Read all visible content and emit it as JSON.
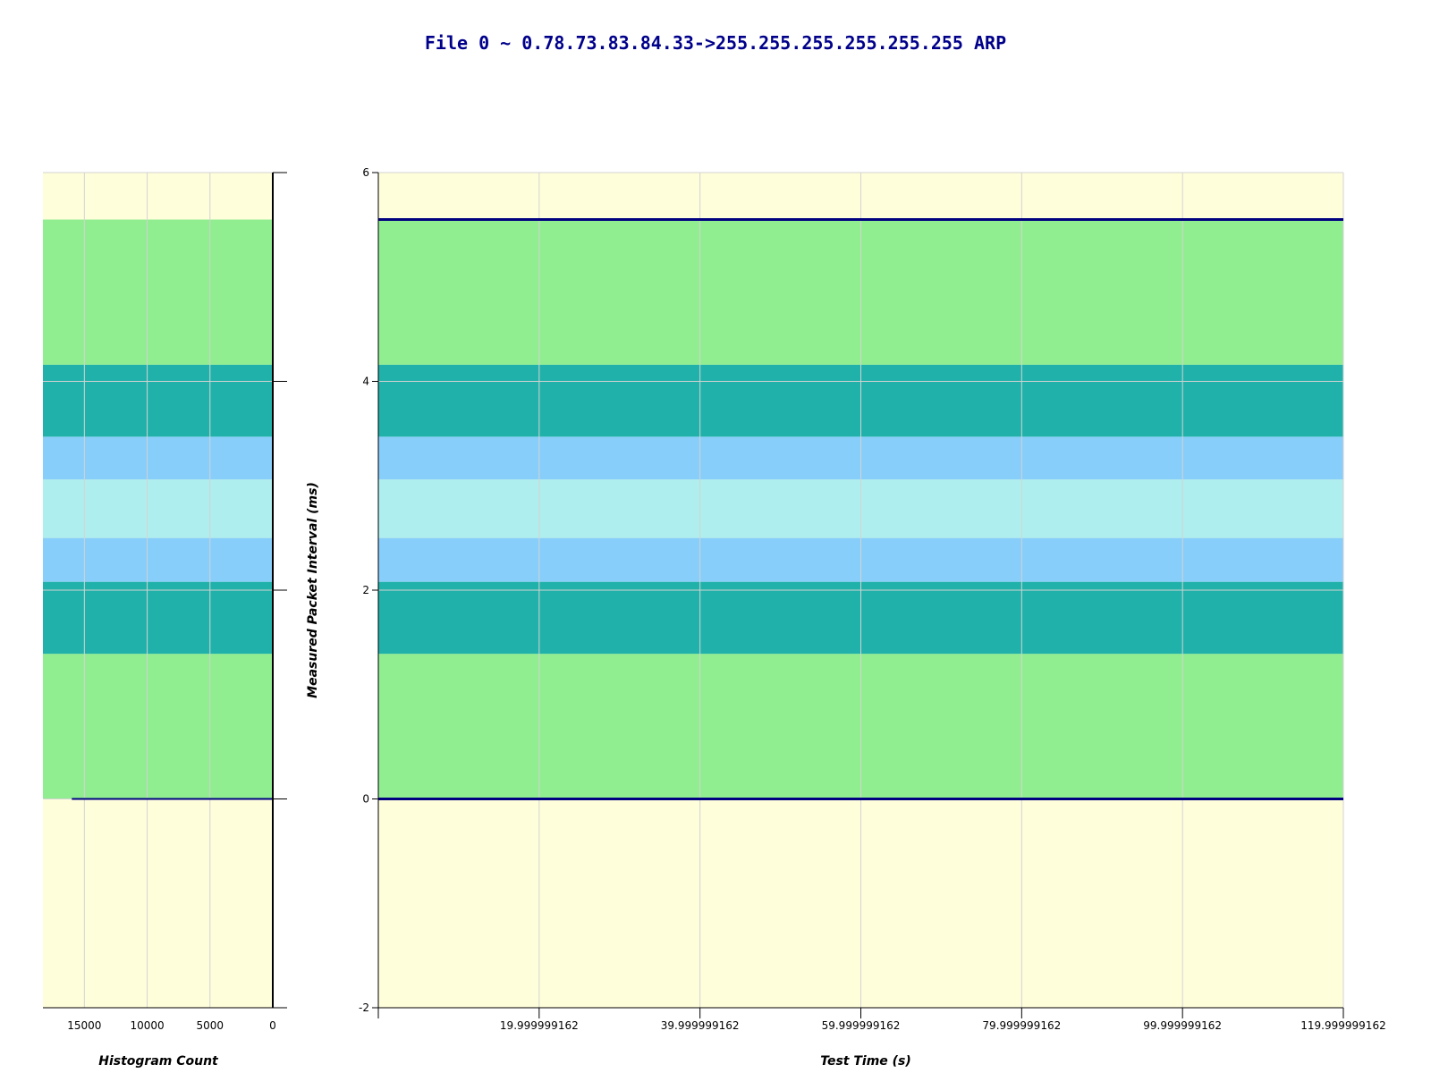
{
  "page": {
    "title": "File 0 ~ 0.78.73.83.84.33->255.255.255.255.255.255 ARP"
  },
  "colors": {
    "plot_background": "#fffedb",
    "band_outer": "#90ee90",
    "band_dark": "#20b2aa",
    "band_light": "#87cefa",
    "band_center": "#afeeee",
    "series_line": "#000080",
    "grid": "#d3d3d3"
  },
  "chart_data": [
    {
      "type": "line",
      "xlabel": "Test Time (s)",
      "ylabel": "Measured Packet Interval (ms)",
      "xlim": [
        0,
        120
      ],
      "ylim": [
        -2,
        6
      ],
      "x_ticks": [
        "19.999999162",
        "39.999999162",
        "59.999999162",
        "79.999999162",
        "99.999999162",
        "119.999999162"
      ],
      "x_tick_values": [
        19.999999162,
        39.999999162,
        59.999999162,
        79.999999162,
        99.999999162,
        119.999999162
      ],
      "y_ticks": [
        "-2",
        "0",
        "2",
        "4",
        "6"
      ],
      "y_tick_values": [
        -2,
        0,
        2,
        4,
        6
      ],
      "grid": true,
      "bands": [
        {
          "from": 0,
          "to": 1.39,
          "role": "outer"
        },
        {
          "from": 1.39,
          "to": 2.08,
          "role": "dark"
        },
        {
          "from": 2.08,
          "to": 2.5,
          "role": "light"
        },
        {
          "from": 2.5,
          "to": 3.06,
          "role": "center"
        },
        {
          "from": 3.06,
          "to": 3.47,
          "role": "light"
        },
        {
          "from": 3.47,
          "to": 4.16,
          "role": "dark"
        },
        {
          "from": 4.16,
          "to": 5.55,
          "role": "outer"
        }
      ],
      "series": [
        {
          "x": [
            0,
            120
          ],
          "y": [
            5.55,
            5.55
          ]
        },
        {
          "x": [
            0,
            120
          ],
          "y": [
            0,
            0
          ]
        }
      ]
    },
    {
      "type": "bar",
      "orientation": "horizontal",
      "xlabel": "Histogram Count",
      "xlim": [
        18300,
        0
      ],
      "x_ticks": [
        "15000",
        "10000",
        "5000",
        "0"
      ],
      "x_tick_values": [
        15000,
        10000,
        5000,
        0
      ],
      "ylim": [
        -2,
        6
      ],
      "grid": true,
      "bars": [
        {
          "y": 0,
          "count": 16000
        },
        {
          "y": 5.55,
          "count": 30
        }
      ]
    }
  ]
}
